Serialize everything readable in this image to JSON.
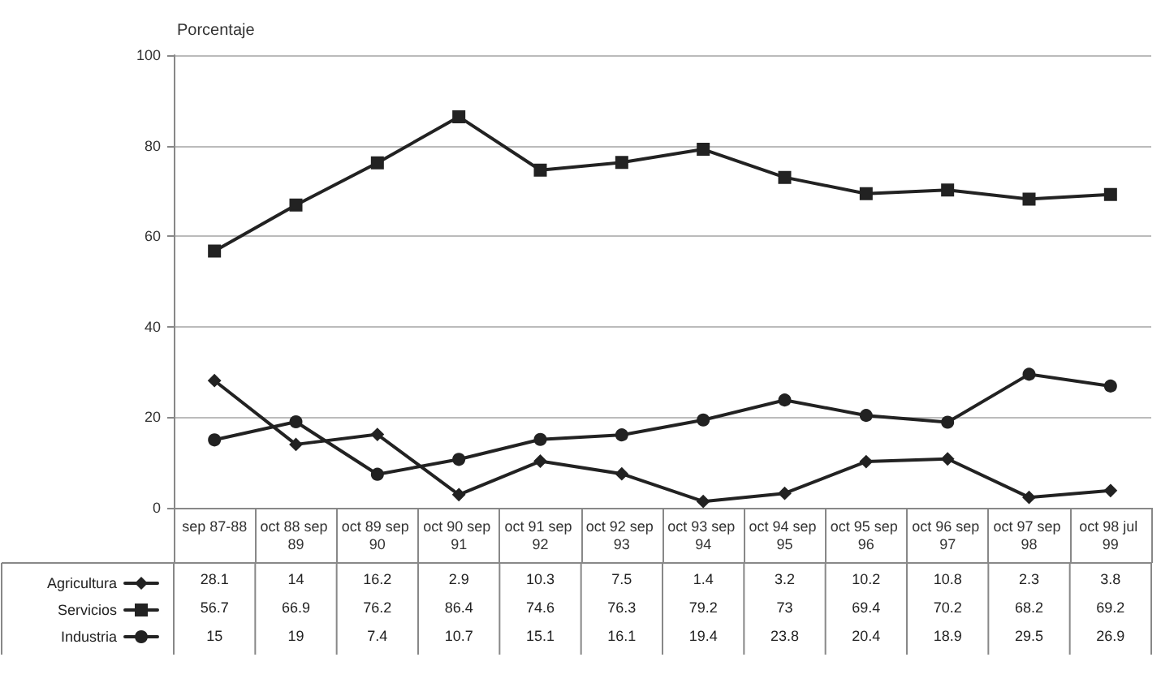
{
  "chart_data": {
    "type": "line",
    "ylabel": "Porcentaje",
    "categories": [
      "sep 87-88",
      "oct 88 sep 89",
      "oct 89 sep 90",
      "oct 90 sep 91",
      "oct 91 sep 92",
      "oct 92 sep 93",
      "oct 93 sep 94",
      "oct 94 sep 95",
      "oct 95 sep 96",
      "oct 96 sep 97",
      "oct 97 sep 98",
      "oct 98 jul 99"
    ],
    "series": [
      {
        "name": "Agricultura",
        "color": "#222222",
        "marker": "diamond",
        "values": [
          28.1,
          14,
          16.2,
          2.9,
          10.3,
          7.5,
          1.4,
          3.2,
          10.2,
          10.8,
          2.3,
          3.8
        ]
      },
      {
        "name": "Servicios",
        "color": "#222222",
        "marker": "square",
        "values": [
          56.7,
          66.9,
          76.2,
          86.4,
          74.6,
          76.3,
          79.2,
          73,
          69.4,
          70.2,
          68.2,
          69.2
        ]
      },
      {
        "name": "Industria",
        "color": "#222222",
        "marker": "circle",
        "values": [
          15,
          19,
          7.4,
          10.7,
          15.1,
          16.1,
          19.4,
          23.8,
          20.4,
          18.9,
          29.5,
          26.9
        ]
      }
    ],
    "ylim": [
      0,
      100
    ],
    "yticks": [
      0,
      20,
      40,
      60,
      80,
      100
    ],
    "grid": "y",
    "legend": "bottom left",
    "data_labels": true,
    "line_style": "solid"
  }
}
